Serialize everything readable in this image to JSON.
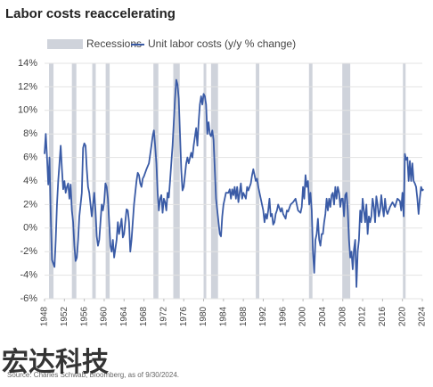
{
  "chart_data": {
    "type": "line",
    "title": "Labor costs reaccelerating",
    "source": "Source: Charles Schwab, Bloomberg, as of 9/30/2024.",
    "watermark": "宏达科技",
    "recessions": {
      "name": "Recessions",
      "color": "#cfd3db",
      "periods": [
        [
          1948.9,
          1949.8
        ],
        [
          1953.5,
          1954.4
        ],
        [
          1957.6,
          1958.3
        ],
        [
          1960.3,
          1961.1
        ],
        [
          1969.9,
          1970.9
        ],
        [
          1973.9,
          1975.2
        ],
        [
          1980.0,
          1980.5
        ],
        [
          1981.5,
          1982.9
        ],
        [
          1990.5,
          1991.2
        ],
        [
          2001.2,
          2001.9
        ],
        [
          2007.9,
          2009.5
        ],
        [
          2020.1,
          2020.4
        ]
      ]
    },
    "x": [
      1948.0,
      1948.25,
      1948.5,
      1948.75,
      1949.0,
      1949.25,
      1949.5,
      1949.75,
      1950.0,
      1950.25,
      1950.5,
      1950.75,
      1951.0,
      1951.25,
      1951.5,
      1951.75,
      1952.0,
      1952.25,
      1952.5,
      1952.75,
      1953.0,
      1953.25,
      1953.5,
      1953.75,
      1954.0,
      1954.25,
      1954.5,
      1954.75,
      1955.0,
      1955.5,
      1955.75,
      1956.0,
      1956.25,
      1956.5,
      1956.75,
      1957.0,
      1957.5,
      1957.75,
      1958.0,
      1958.25,
      1958.5,
      1958.75,
      1959.0,
      1959.25,
      1959.5,
      1959.75,
      1960.0,
      1960.25,
      1960.5,
      1960.75,
      1961.0,
      1961.25,
      1961.5,
      1961.75,
      1962.0,
      1962.5,
      1962.75,
      1963.0,
      1963.5,
      1963.75,
      1964.0,
      1964.5,
      1964.75,
      1965.0,
      1965.25,
      1965.5,
      1966.0,
      1966.5,
      1966.75,
      1967.0,
      1967.25,
      1967.5,
      1967.75,
      1968.0,
      1968.5,
      1969.0,
      1969.5,
      1969.75,
      1970.0,
      1970.25,
      1970.5,
      1970.75,
      1971.0,
      1971.25,
      1971.5,
      1971.75,
      1972.0,
      1972.25,
      1972.5,
      1972.75,
      1973.0,
      1973.25,
      1973.5,
      1973.75,
      1974.0,
      1974.25,
      1974.5,
      1974.75,
      1975.0,
      1975.25,
      1975.5,
      1975.75,
      1976.0,
      1976.25,
      1976.5,
      1976.75,
      1977.0,
      1977.5,
      1977.75,
      1978.0,
      1978.5,
      1978.75,
      1979.0,
      1979.25,
      1979.5,
      1979.75,
      1980.0,
      1980.25,
      1980.5,
      1980.75,
      1981.0,
      1981.25,
      1981.5,
      1981.75,
      1982.0,
      1982.25,
      1982.5,
      1982.75,
      1983.0,
      1983.25,
      1983.5,
      1983.75,
      1984.0,
      1984.5,
      1985.0,
      1985.25,
      1985.5,
      1985.75,
      1986.0,
      1986.25,
      1986.5,
      1986.75,
      1987.0,
      1987.5,
      1987.75,
      1988.0,
      1988.5,
      1988.75,
      1989.0,
      1989.5,
      1989.75,
      1990.0,
      1990.25,
      1990.5,
      1990.75,
      1991.0,
      1991.5,
      1992.0,
      1992.25,
      1992.5,
      1992.75,
      1993.0,
      1993.25,
      1993.5,
      1993.75,
      1994.0,
      1994.25,
      1994.5,
      1994.75,
      1995.0,
      1995.5,
      1995.75,
      1996.0,
      1996.5,
      1996.75,
      1997.0,
      1997.5,
      1998.0,
      1998.5,
      1998.75,
      1999.0,
      1999.5,
      1999.75,
      2000.0,
      2000.25,
      2000.5,
      2000.75,
      2001.0,
      2001.25,
      2001.5,
      2001.75,
      2002.0,
      2002.25,
      2002.5,
      2002.75,
      2003.0,
      2003.25,
      2003.5,
      2003.75,
      2004.0,
      2004.25,
      2004.5,
      2004.75,
      2005.0,
      2005.25,
      2005.5,
      2005.75,
      2006.0,
      2006.25,
      2006.5,
      2006.75,
      2007.0,
      2007.25,
      2007.5,
      2007.75,
      2008.0,
      2008.25,
      2008.5,
      2008.75,
      2009.0,
      2009.25,
      2009.5,
      2009.75,
      2010.0,
      2010.25,
      2010.5,
      2010.75,
      2011.0,
      2011.25,
      2011.5,
      2011.75,
      2012.0,
      2012.25,
      2012.5,
      2012.75,
      2013.0,
      2013.25,
      2013.5,
      2013.75,
      2014.0,
      2014.25,
      2014.5,
      2014.75,
      2015.0,
      2015.25,
      2015.5,
      2015.75,
      2016.0,
      2016.25,
      2016.5,
      2016.75,
      2017.0,
      2017.5,
      2018.0,
      2018.5,
      2019.0,
      2019.5,
      2019.75,
      2020.0,
      2020.25,
      2020.5,
      2020.75,
      2021.0,
      2021.25,
      2021.5,
      2021.75,
      2022.0,
      2022.25,
      2022.5,
      2022.75,
      2023.0,
      2023.25,
      2023.5,
      2023.75,
      2024.0,
      2024.25
    ],
    "series": [
      {
        "name": "Unit labor costs (y/y % change)",
        "color": "#3a5ba6",
        "values": [
          6.3,
          8,
          6,
          3.7,
          6,
          1,
          -2.7,
          -3,
          -3.3,
          -1,
          2,
          4,
          5.5,
          7,
          5,
          3.3,
          4,
          3,
          3.5,
          3.8,
          2.5,
          3.7,
          1.5,
          0.5,
          -1.5,
          -2.8,
          -2.5,
          -1,
          1,
          3,
          6.8,
          7.2,
          7,
          5,
          3.5,
          3,
          1,
          2,
          3,
          1.5,
          -0.7,
          -1.5,
          -1,
          0.5,
          2,
          1.5,
          2.2,
          3.8,
          3.5,
          2.5,
          0.5,
          -1.5,
          -2,
          -1,
          -2.5,
          -1,
          0.5,
          -0.5,
          0.8,
          -0.8,
          -0.5,
          1.6,
          1.5,
          0.5,
          -2,
          -1,
          2,
          4,
          4.7,
          4.5,
          3.8,
          3.5,
          4.2,
          4.4,
          5,
          5.5,
          7,
          7.8,
          8.3,
          7,
          5.5,
          3,
          1.5,
          2.5,
          2.8,
          1.3,
          2.5,
          2.2,
          1.5,
          3,
          2.6,
          4,
          5.5,
          7,
          9,
          11,
          12.6,
          12.2,
          11,
          8,
          5,
          3.2,
          3.5,
          4.5,
          5.5,
          6,
          5.5,
          6.4,
          6,
          7,
          8.5,
          7,
          9,
          10.5,
          11.2,
          10.5,
          11.4,
          11.2,
          10.5,
          8,
          9,
          8,
          7.8,
          8.3,
          7.5,
          5,
          2.5,
          1.5,
          0.5,
          -0.5,
          -0.7,
          1,
          2,
          3,
          3,
          3.3,
          2.5,
          3.3,
          2.8,
          3.5,
          2.5,
          3.5,
          2.2,
          3.8,
          2.5,
          3,
          2.5,
          3.5,
          3.2,
          3.8,
          4.5,
          5,
          4.5,
          4,
          4.2,
          3.5,
          2.5,
          1.5,
          0.5,
          1.2,
          0.8,
          1.5,
          2.5,
          1,
          1.2,
          0.3,
          0.5,
          1.2,
          1.5,
          2,
          1.4,
          1.7,
          1.2,
          0.8,
          1.5,
          1.4,
          2,
          2.2,
          2.5,
          2,
          1.5,
          1.3,
          1.8,
          3.5,
          2.5,
          4.5,
          3.5,
          4,
          2,
          3,
          1.5,
          -2,
          -3.8,
          -1,
          -0.5,
          0.8,
          -1,
          -1.5,
          -0.5,
          -0.5,
          0.5,
          1.2,
          2.5,
          1.5,
          2.5,
          1.8,
          2.8,
          3,
          2,
          3.5,
          2.5,
          3.5,
          3,
          1.8,
          2.5,
          2.5,
          1,
          2.8,
          3,
          1.5,
          -1,
          -2.5,
          -2,
          -3.5,
          -1.8,
          -1,
          -5,
          -2,
          -1,
          1.5,
          0.5,
          2.5,
          1.5,
          0.5,
          2,
          -0.5,
          1,
          0.5,
          1,
          2.5,
          1.8,
          0.5,
          2.7,
          2,
          1,
          1.5,
          2.8,
          1.8,
          1,
          2.5,
          1.5,
          1.2,
          1.8,
          2.2,
          1.8,
          2.5,
          2.3,
          1.5,
          3,
          1,
          6.3,
          5.8,
          6,
          4,
          5.7,
          4,
          5.5,
          4,
          3.8,
          3.5,
          2.5,
          1.2,
          2.5,
          3.5,
          3.2,
          3.3
        ]
      }
    ],
    "xlim": [
      1948,
      2024
    ],
    "xticks": [
      1948,
      1952,
      1956,
      1960,
      1964,
      1968,
      1972,
      1976,
      1980,
      1984,
      1988,
      1992,
      1996,
      2000,
      2004,
      2008,
      2012,
      2016,
      2020,
      2024
    ],
    "ylim": [
      -6,
      14
    ],
    "yticks": [
      {
        "value": -6,
        "label": "-6%"
      },
      {
        "value": -4,
        "label": "-4%"
      },
      {
        "value": -2,
        "label": "-2%"
      },
      {
        "value": 0,
        "label": "0%"
      },
      {
        "value": 2,
        "label": "2%"
      },
      {
        "value": 4,
        "label": "4%"
      },
      {
        "value": 6,
        "label": "6%"
      },
      {
        "value": 8,
        "label": "8%"
      },
      {
        "value": 10,
        "label": "10%"
      },
      {
        "value": 12,
        "label": "12%"
      },
      {
        "value": 14,
        "label": "14%"
      }
    ],
    "grid": true
  }
}
